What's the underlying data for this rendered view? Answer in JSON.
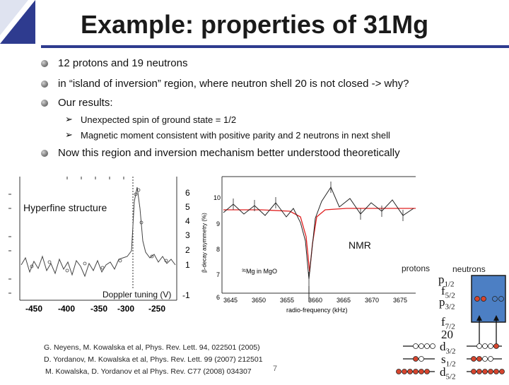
{
  "slide": {
    "title": "Example: properties of 31Mg",
    "bullets": [
      "12 protons and 19 neutrons",
      "in “island of inversion” region, where neutron shell 20 is not closed -> why?",
      "Our results:"
    ],
    "sub_bullets": [
      "Unexpected spin of ground state = 1/2",
      "Magnetic moment consistent with positive parity and 2 neutrons in next shell"
    ],
    "bullet_last": "Now this region and inversion mechanism better understood theoretically",
    "page_number": "7",
    "references": [
      "G. Neyens, M. Kowalska et al, Phys. Rev. Lett. 94, 022501 (2005)",
      "D. Yordanov, M. Kowalska et al, Phys. Rev. Lett. 99 (2007) 212501",
      "M. Kowalska, D. Yordanov et al Phys. Rev. C77 (2008) 034307"
    ]
  },
  "hyperfine_plot": {
    "label": "Hyperfine structure",
    "xlabel": "Doppler tuning (V)",
    "x_ticks": [
      "-450",
      "-400",
      "-350",
      "-300",
      "-250"
    ],
    "y_ticks_right": [
      "6",
      "5",
      "4",
      "3",
      "2",
      "1",
      "-1"
    ]
  },
  "nmr_plot": {
    "label": "NMR",
    "inset_label": "³¹Mg in MgO",
    "ylabel": "β-decay asymmetry (%)",
    "xlabel": "radio-frequency (kHz)",
    "x_ticks": [
      "3645",
      "3650",
      "3655",
      "3660",
      "3665",
      "3670",
      "3675"
    ],
    "y_ticks": [
      "10",
      "9",
      "8",
      "7",
      "6"
    ]
  },
  "shell_diagram": {
    "protons_label": "protons",
    "neutrons_label": "neutrons",
    "levels_upper": [
      {
        "name": "p",
        "sub": "1/2"
      },
      {
        "name": "f",
        "sub": "5/2"
      },
      {
        "name": "p",
        "sub": "3/2"
      }
    ],
    "level_f72": {
      "name": "f",
      "sub": "7/2"
    },
    "magic_number": "20",
    "levels_lower": [
      {
        "name": "d",
        "sub": "3/2"
      },
      {
        "name": "s",
        "sub": "1/2"
      },
      {
        "name": "d",
        "sub": "5/2"
      }
    ]
  },
  "colors": {
    "corner_blue": "#2e3b8f",
    "nucleon_red": "#d6452e",
    "box_blue": "#4c7fc4",
    "fit_red": "#e02020"
  }
}
